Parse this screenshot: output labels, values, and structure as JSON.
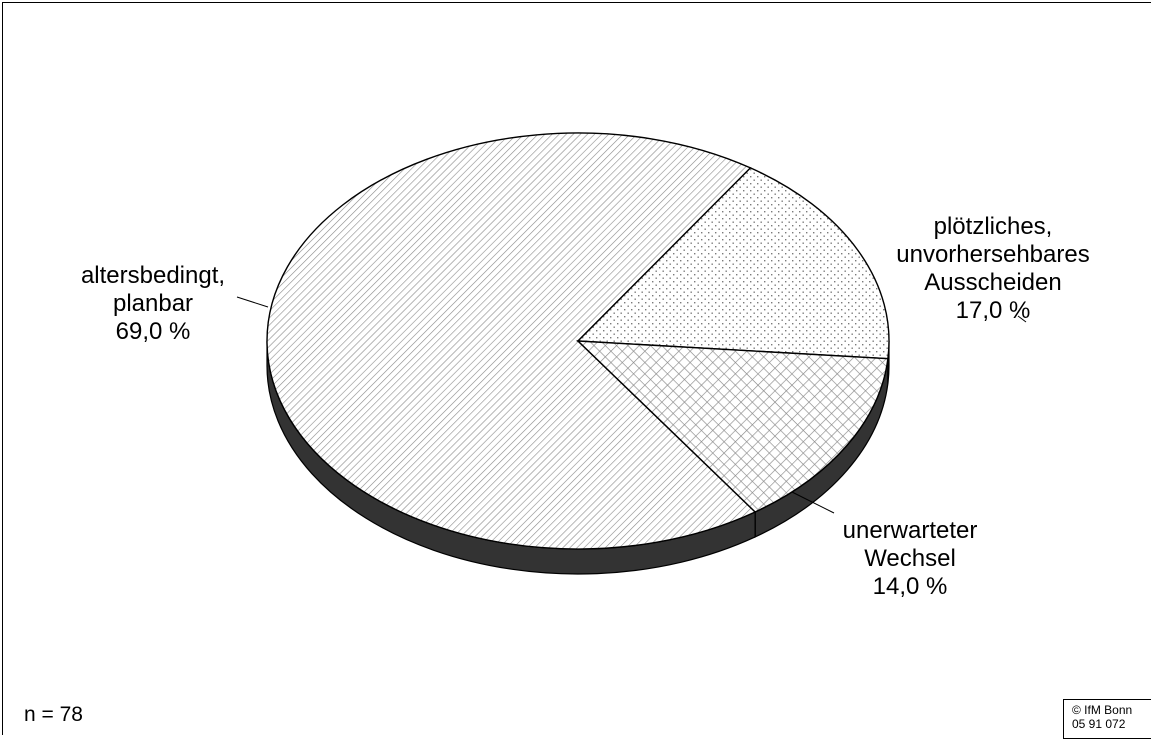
{
  "chart_data": {
    "type": "pie",
    "title": "",
    "slices": [
      {
        "label_lines": [
          "altersbedingt,",
          "planbar"
        ],
        "value_label": "69,0 %",
        "value": 69.0
      },
      {
        "label_lines": [
          "plötzliches,",
          "unvorhersehbares",
          "Ausscheiden"
        ],
        "value_label": "17,0 %",
        "value": 17.0
      },
      {
        "label_lines": [
          "unerwarteter",
          "Wechsel"
        ],
        "value_label": "14,0 %",
        "value": 14.0
      }
    ],
    "sample_size": "n = 78",
    "three_d": true
  },
  "footer": {
    "copyright_line1": "© IfM Bonn",
    "copyright_line2": "05 91 072"
  }
}
